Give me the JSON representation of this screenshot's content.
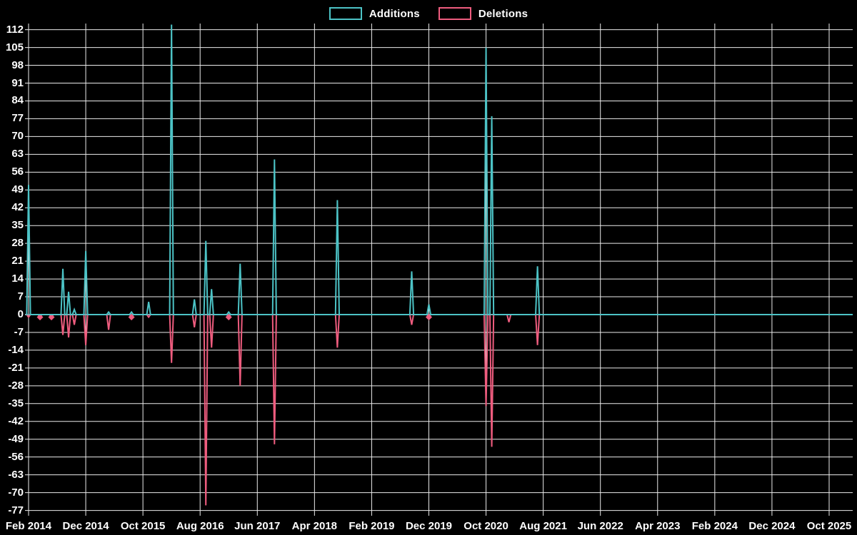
{
  "legend": {
    "items": [
      {
        "label": "Additions",
        "color": "#4CC3C6"
      },
      {
        "label": "Deletions",
        "color": "#EE5C7E"
      }
    ]
  },
  "chart_data": {
    "type": "line",
    "title": "",
    "xlabel": "",
    "ylabel": "",
    "background_color": "#000000",
    "grid": true,
    "gridline_color": "#ffffff",
    "zero_baseline_color": "#7FA9B4",
    "x_axis": {
      "tick_labels": [
        "Feb 2014",
        "Dec 2014",
        "Oct 2015",
        "Aug 2016",
        "Jun 2017",
        "Apr 2018",
        "Feb 2019",
        "Dec 2019",
        "Oct 2020",
        "Aug 2021",
        "Jun 2022",
        "Apr 2023",
        "Feb 2024",
        "Dec 2024",
        "Oct 2025"
      ],
      "range_start": "Feb 2014",
      "range_end": "Dec 2025"
    },
    "y_axis": {
      "min": -77,
      "max": 112,
      "step": 7,
      "tick_labels": [
        112,
        105,
        98,
        91,
        84,
        77,
        70,
        63,
        56,
        49,
        42,
        35,
        28,
        21,
        14,
        7,
        0,
        -7,
        -14,
        -21,
        -28,
        -35,
        -42,
        -49,
        -56,
        -63,
        -70,
        -77
      ]
    },
    "legend_position": "top-center",
    "series": [
      {
        "name": "Additions",
        "color": "#4CC3C6",
        "baseline_value": 0,
        "points": [
          {
            "date": "Feb 2014",
            "value": 51
          },
          {
            "date": "Aug 2014",
            "value": 18
          },
          {
            "date": "Sep 2014",
            "value": 9
          },
          {
            "date": "Oct 2014",
            "value": 2
          },
          {
            "date": "Dec 2014",
            "value": 25
          },
          {
            "date": "Apr 2015",
            "value": 1
          },
          {
            "date": "Aug 2015",
            "value": 1
          },
          {
            "date": "Nov 2015",
            "value": 5
          },
          {
            "date": "Mar 2016",
            "value": 114,
            "clipped_at_top": true
          },
          {
            "date": "Jul 2016",
            "value": 6
          },
          {
            "date": "Sep 2016",
            "value": 29
          },
          {
            "date": "Oct 2016",
            "value": 10
          },
          {
            "date": "Jan 2017",
            "value": 1
          },
          {
            "date": "Mar 2017",
            "value": 20
          },
          {
            "date": "Sep 2017",
            "value": 61
          },
          {
            "date": "Aug 2018",
            "value": 45
          },
          {
            "date": "Sep 2019",
            "value": 17
          },
          {
            "date": "Dec 2019",
            "value": 4
          },
          {
            "date": "Oct 2020",
            "value": 105
          },
          {
            "date": "Nov 2020",
            "value": 78
          },
          {
            "date": "Jul 2021",
            "value": 19
          }
        ]
      },
      {
        "name": "Deletions",
        "color": "#EE5C7E",
        "baseline_value": 0,
        "points": [
          {
            "date": "Feb 2014",
            "value": -1
          },
          {
            "date": "Apr 2014",
            "value": -1,
            "marker": true
          },
          {
            "date": "Jun 2014",
            "value": -1,
            "marker": true
          },
          {
            "date": "Aug 2014",
            "value": -8
          },
          {
            "date": "Sep 2014",
            "value": -9
          },
          {
            "date": "Oct 2014",
            "value": -4
          },
          {
            "date": "Dec 2014",
            "value": -12
          },
          {
            "date": "Apr 2015",
            "value": -6
          },
          {
            "date": "Aug 2015",
            "value": -1,
            "marker": true
          },
          {
            "date": "Nov 2015",
            "value": -1
          },
          {
            "date": "Mar 2016",
            "value": -19
          },
          {
            "date": "Jul 2016",
            "value": -5
          },
          {
            "date": "Sep 2016",
            "value": -75
          },
          {
            "date": "Oct 2016",
            "value": -13
          },
          {
            "date": "Jan 2017",
            "value": -1,
            "marker": true
          },
          {
            "date": "Mar 2017",
            "value": -28
          },
          {
            "date": "Sep 2017",
            "value": -51
          },
          {
            "date": "Aug 2018",
            "value": -13
          },
          {
            "date": "Sep 2019",
            "value": -4
          },
          {
            "date": "Dec 2019",
            "value": -1,
            "marker": true
          },
          {
            "date": "Oct 2020",
            "value": -36
          },
          {
            "date": "Nov 2020",
            "value": -52
          },
          {
            "date": "Feb 2021",
            "value": -3
          },
          {
            "date": "Jul 2021",
            "value": -12
          }
        ]
      }
    ]
  }
}
